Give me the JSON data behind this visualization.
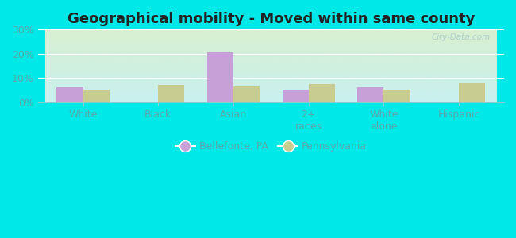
{
  "title": "Geographical mobility - Moved within same county",
  "categories": [
    "White",
    "Black",
    "Asian",
    "2+\nraces",
    "White\nalone",
    "Hispanic"
  ],
  "bellefonte_values": [
    6.0,
    0.0,
    20.5,
    5.0,
    6.0,
    0.0
  ],
  "pennsylvania_values": [
    5.0,
    7.0,
    6.5,
    7.5,
    5.0,
    8.0
  ],
  "bellefonte_color": "#c8a0d8",
  "pennsylvania_color": "#c8cc90",
  "bg_color": "#00e8e8",
  "ylim": [
    0,
    30
  ],
  "yticks": [
    0,
    10,
    20,
    30
  ],
  "ytick_labels": [
    "0%",
    "10%",
    "20%",
    "30%"
  ],
  "title_fontsize": 13,
  "legend_labels": [
    "Bellefonte, PA",
    "Pennsylvania"
  ],
  "bar_width": 0.35,
  "watermark": "City-Data.com",
  "tick_color": "#55aaaa",
  "gradient_top_left": "#d8f0d0",
  "gradient_bottom_right": "#c0eeee"
}
